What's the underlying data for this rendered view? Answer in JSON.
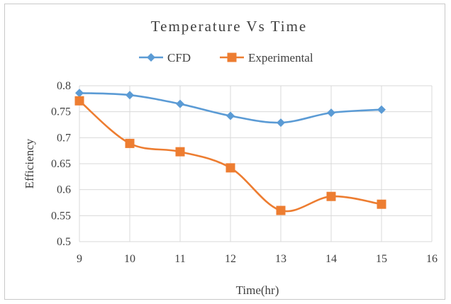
{
  "chart_data": {
    "type": "line",
    "title": "Temperature Vs Time",
    "xlabel": "Time(hr)",
    "ylabel": "Efficiency",
    "xlim": [
      9,
      16
    ],
    "ylim": [
      0.5,
      0.8
    ],
    "x_ticks": [
      9,
      10,
      11,
      12,
      13,
      14,
      15,
      16
    ],
    "y_ticks": [
      0.5,
      0.55,
      0.6,
      0.65,
      0.7,
      0.75,
      0.8
    ],
    "x_tick_labels": [
      "9",
      "10",
      "11",
      "12",
      "13",
      "14",
      "15",
      "16"
    ],
    "y_tick_labels": [
      "0.5",
      "0.55",
      "0.6",
      "0.65",
      "0.7",
      "0.75",
      "0.8"
    ],
    "grid": true,
    "legend_position": "top",
    "smooth": true,
    "x": [
      9,
      10,
      11,
      12,
      13,
      14,
      15
    ],
    "series": [
      {
        "name": "CFD",
        "color": "#5b9bd5",
        "marker": "diamond",
        "values": [
          0.786,
          0.782,
          0.765,
          0.742,
          0.729,
          0.748,
          0.754
        ]
      },
      {
        "name": "Experimental",
        "color": "#ed7d31",
        "marker": "square",
        "values": [
          0.771,
          0.689,
          0.673,
          0.642,
          0.56,
          0.587,
          0.572
        ]
      }
    ]
  }
}
